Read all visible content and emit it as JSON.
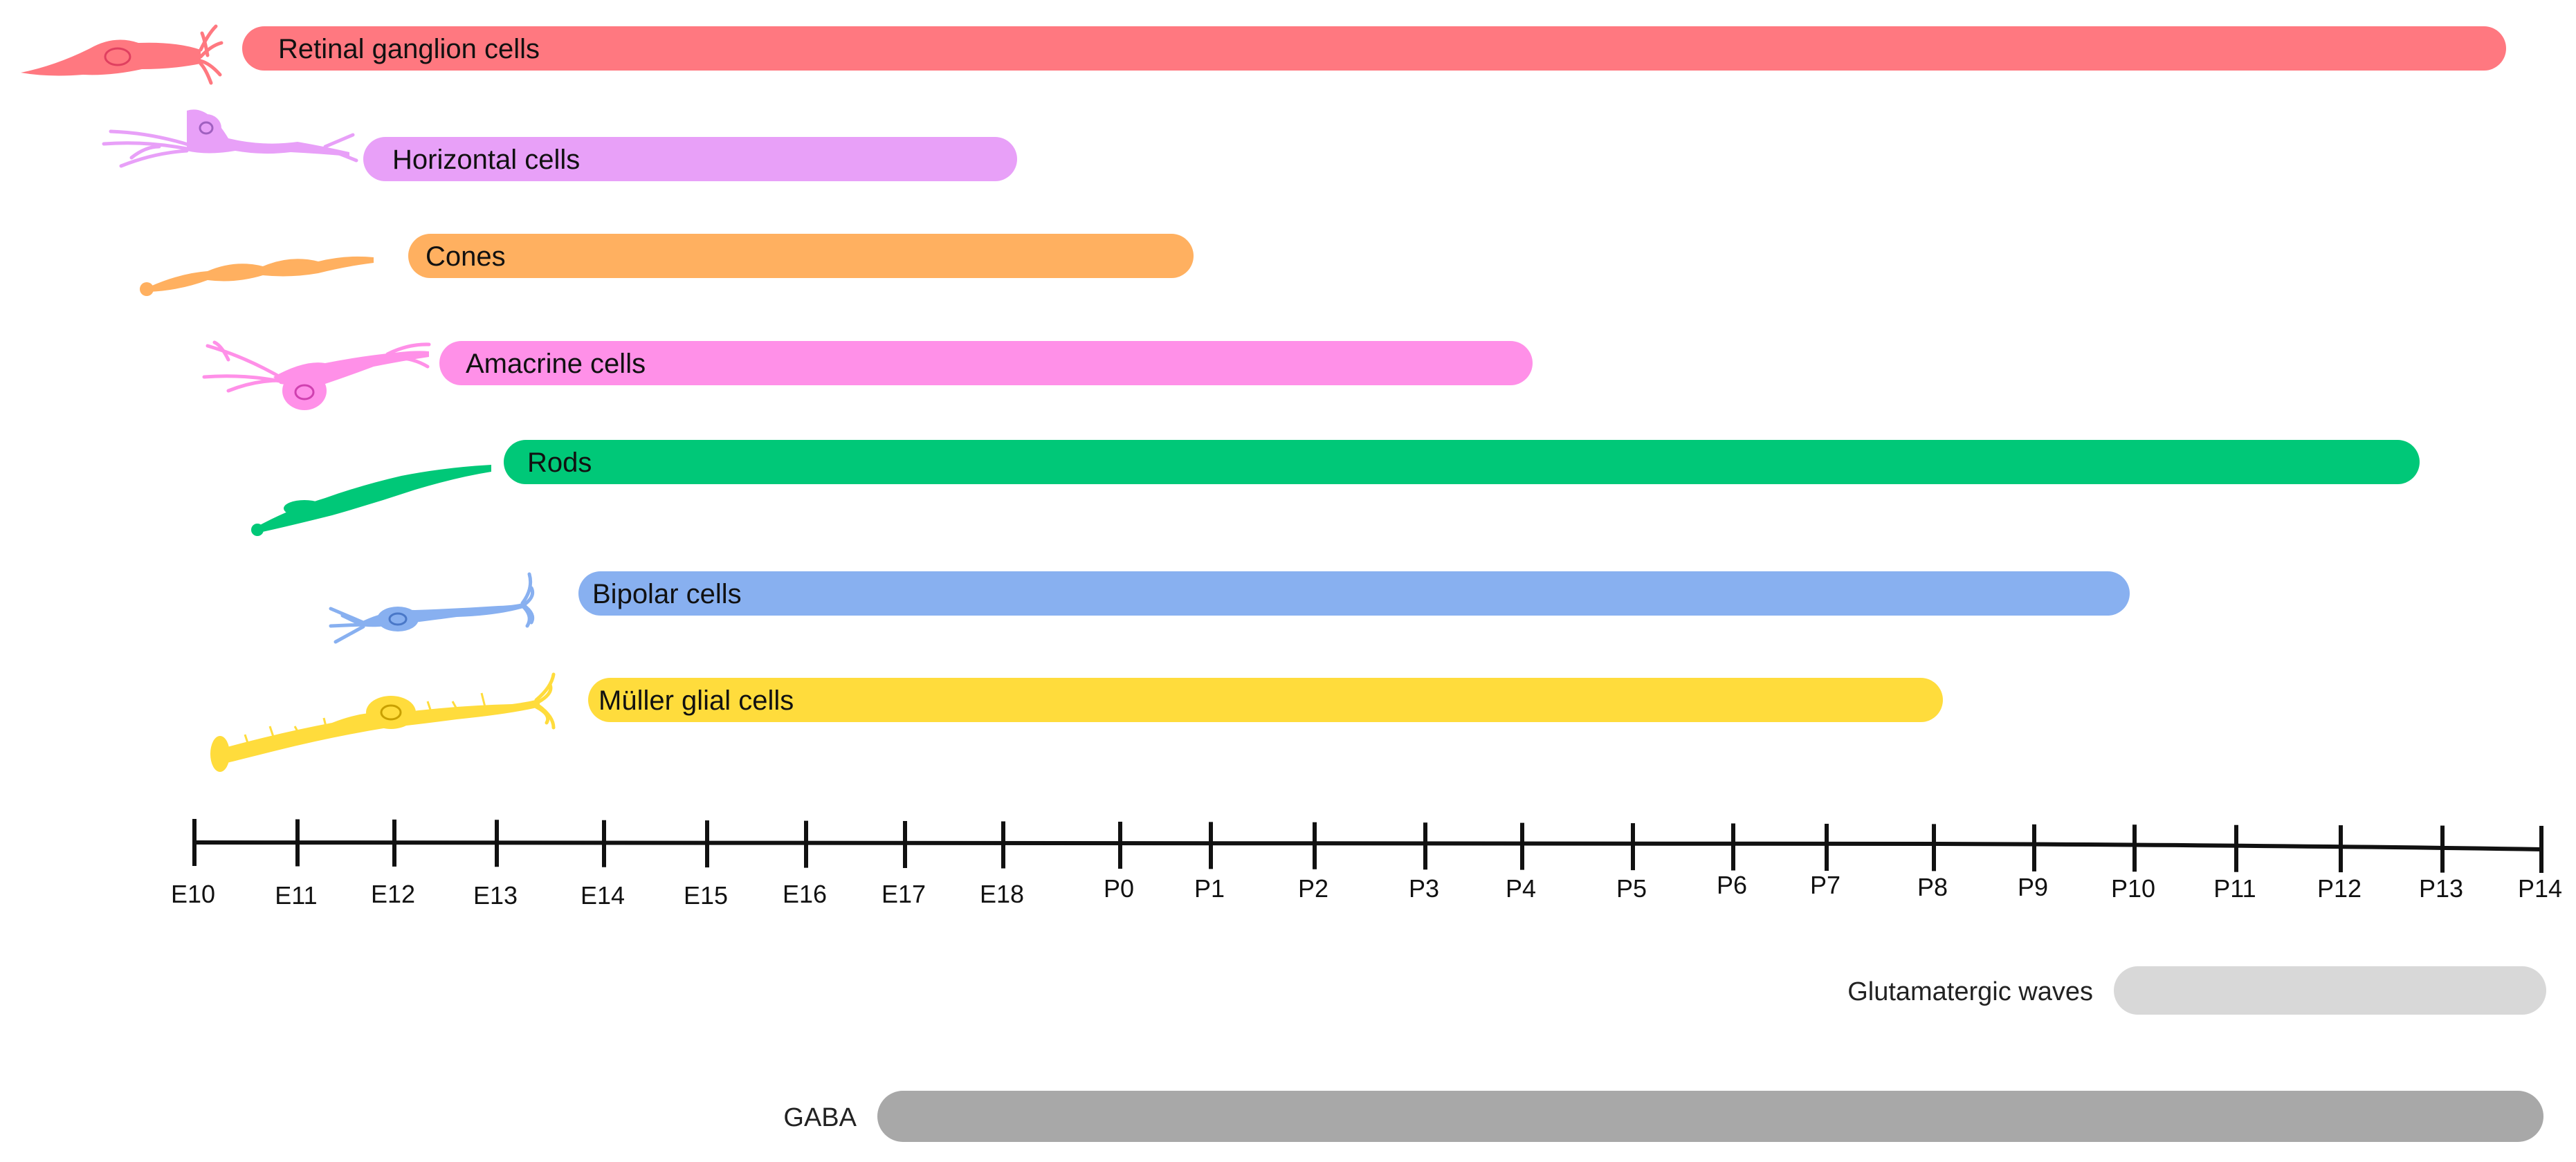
{
  "diagram": {
    "cell_types": [
      {
        "label": "Retinal ganglion cells",
        "start": "E10",
        "end": "P14",
        "color": "#ff7880",
        "icon": "ganglion-neuron-icon"
      },
      {
        "label": "Horizontal cells",
        "start": "E11",
        "end": "E18",
        "color": "#e8a0f8",
        "icon": "horizontal-cell-icon"
      },
      {
        "label": "Cones",
        "start": "E12",
        "end": "P1",
        "color": "#ffb060",
        "icon": "cone-photoreceptor-icon"
      },
      {
        "label": "Amacrine cells",
        "start": "E12",
        "end": "P4",
        "color": "#ff90e8",
        "icon": "amacrine-cell-icon"
      },
      {
        "label": "Rods",
        "start": "E13",
        "end": "P13",
        "color": "#00c878",
        "icon": "rod-photoreceptor-icon"
      },
      {
        "label": "Bipolar cells",
        "start": "E13",
        "end": "P10",
        "color": "#88b0f0",
        "icon": "bipolar-cell-icon"
      },
      {
        "label": "Müller glial cells",
        "start": "E14",
        "end": "P8",
        "color": "#ffdc3c",
        "icon": "muller-glia-icon"
      }
    ],
    "axis_ticks": [
      "E10",
      "E11",
      "E12",
      "E13",
      "E14",
      "E15",
      "E16",
      "E17",
      "E18",
      "P0",
      "P1",
      "P2",
      "P3",
      "P4",
      "P5",
      "P6",
      "P7",
      "P8",
      "P9",
      "P10",
      "P11",
      "P12",
      "P13",
      "P14"
    ],
    "waves": [
      {
        "label": "Glutamatergic waves",
        "start": "P10",
        "end": "P14",
        "color": "#d8d8d8"
      },
      {
        "label": "GABA",
        "start": "E17",
        "end": "P14",
        "color": "#a8a8a8"
      }
    ]
  }
}
